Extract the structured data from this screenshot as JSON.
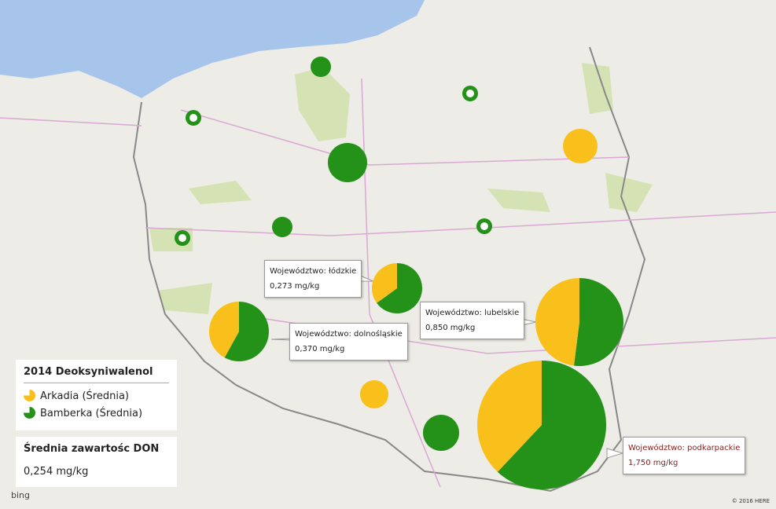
{
  "legend": {
    "title": "2014 Deoksyniwalenol",
    "items": [
      {
        "name": "Arkadia (Średnia)",
        "color": "#f9bf1a"
      },
      {
        "name": "Bamberka (Średnia)",
        "color": "#249118"
      }
    ]
  },
  "summary": {
    "label": "Średnia zawartośc DON",
    "value": "0,254 mg/kg"
  },
  "tooltips": [
    {
      "label": "Województwo: łódzkie",
      "value": "0,273 mg/kg"
    },
    {
      "label": "Województwo: dolnośląskie",
      "value": "0,370 mg/kg"
    },
    {
      "label": "Województwo: lubelskie",
      "value": "0,850 mg/kg"
    },
    {
      "label": "Województwo: podkarpackie",
      "value": "1,750 mg/kg"
    }
  ],
  "pies": [
    {
      "arkadia": 0,
      "bamberka": 100
    },
    {
      "arkadia": 0,
      "bamberka": 100
    },
    {
      "arkadia": 0,
      "bamberka": 100
    },
    {
      "arkadia": 0,
      "bamberka": 100
    },
    {
      "arkadia": 100,
      "bamberka": 0
    },
    {
      "arkadia": 0,
      "bamberka": 100
    },
    {
      "arkadia": 0,
      "bamberka": 100
    },
    {
      "arkadia": 0,
      "bamberka": 100
    },
    {
      "arkadia": 35,
      "bamberka": 65
    },
    {
      "arkadia": 42,
      "bamberka": 58
    },
    {
      "arkadia": 48,
      "bamberka": 52
    },
    {
      "arkadia": 100,
      "bamberka": 0
    },
    {
      "arkadia": 0,
      "bamberka": 100
    },
    {
      "arkadia": 38,
      "bamberka": 62
    }
  ],
  "attribution": {
    "provider": "bing",
    "copyright": "© 2016 HERE"
  }
}
